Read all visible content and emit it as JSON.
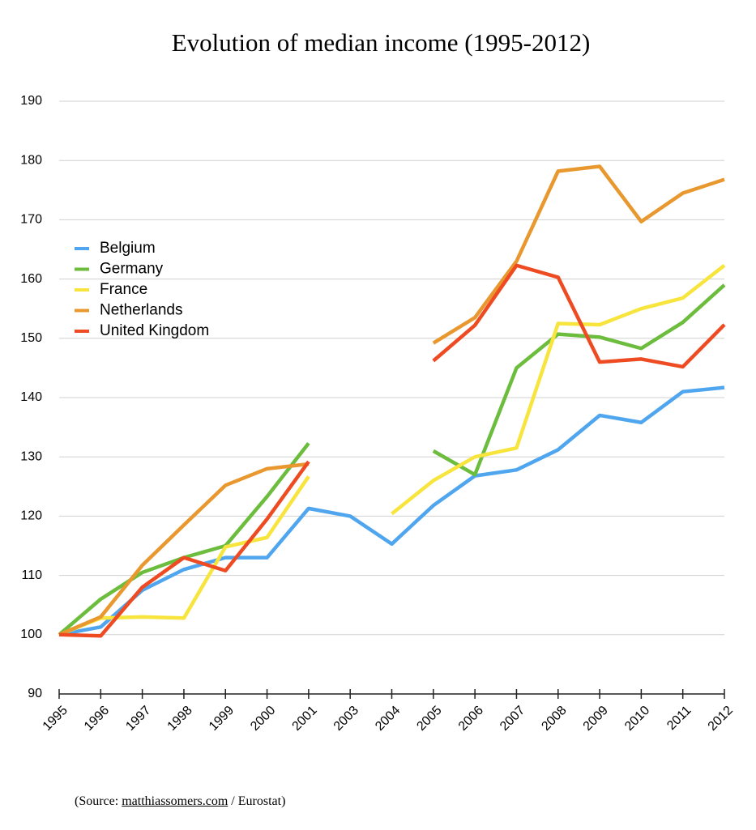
{
  "chart_data": {
    "type": "line",
    "title": "Evolution of median income (1995-2012)",
    "categories": [
      "1995",
      "1996",
      "1997",
      "1998",
      "1999",
      "2000",
      "2001",
      "2003",
      "2004",
      "2005",
      "2006",
      "2007",
      "2008",
      "2009",
      "2010",
      "2011",
      "2012"
    ],
    "series": [
      {
        "name": "Belgium",
        "color": "#4fa6ee",
        "values": [
          100,
          101.3,
          107.5,
          111,
          113,
          113,
          121.3,
          120,
          115.3,
          121.8,
          126.8,
          127.8,
          131.2,
          137,
          135.8,
          141,
          141.7
        ]
      },
      {
        "name": "Germany",
        "color": "#6cbd3d",
        "values": [
          100,
          106,
          110.5,
          113,
          115,
          123.3,
          132.3,
          null,
          null,
          131,
          127,
          145,
          150.7,
          150.2,
          148.3,
          152.7,
          159
        ]
      },
      {
        "name": "France",
        "color": "#f7e53e",
        "values": [
          100,
          102.8,
          103,
          102.8,
          114.8,
          116.4,
          126.7,
          null,
          120.4,
          126,
          130,
          131.5,
          152.5,
          152.3,
          155,
          156.8,
          162.3
        ]
      },
      {
        "name": "Netherlands",
        "color": "#e8982e",
        "values": [
          100,
          103,
          111.7,
          118.5,
          125.2,
          128,
          128.8,
          null,
          null,
          149.2,
          153.5,
          163,
          178.2,
          179,
          169.7,
          174.5,
          176.8
        ]
      },
      {
        "name": "United Kingdom",
        "color": "#ee4b22",
        "values": [
          100,
          99.8,
          108,
          113,
          110.8,
          119.5,
          129.2,
          null,
          null,
          146.2,
          152.2,
          162.3,
          160.3,
          146,
          146.5,
          145.2,
          152.3
        ]
      }
    ],
    "ylim": [
      90,
      190
    ],
    "yticks": [
      90,
      100,
      110,
      120,
      130,
      140,
      150,
      160,
      170,
      180,
      190
    ],
    "grid": true,
    "legend": "left",
    "source": {
      "prefix": "(Source:",
      "link": "matthiassomers.com",
      "suffix": "/ Eurostat)"
    }
  }
}
